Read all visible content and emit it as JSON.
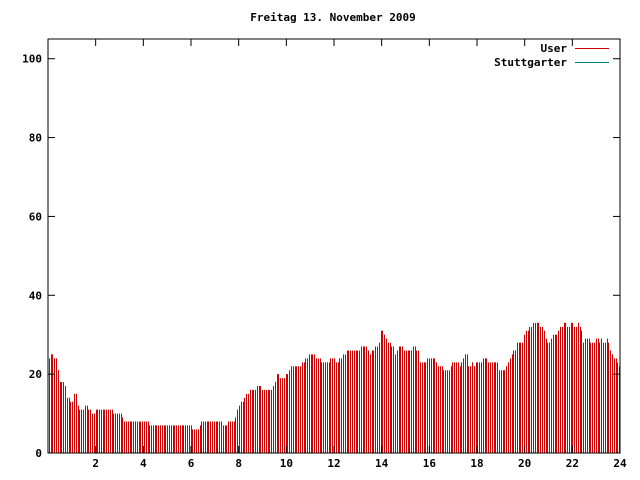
{
  "chart_data": {
    "type": "bar",
    "title": "Freitag 13. November 2009",
    "xlabel": "",
    "ylabel": "",
    "xlim": [
      0,
      24
    ],
    "ylim": [
      0,
      105
    ],
    "grid": false,
    "legend_position": "top-right",
    "x_ticks": [
      2,
      4,
      6,
      8,
      10,
      12,
      14,
      16,
      18,
      20,
      22,
      24
    ],
    "y_ticks": [
      0,
      20,
      40,
      60,
      80,
      100
    ],
    "series": [
      {
        "name": "User",
        "color": "#cc0000",
        "values": [
          24,
          25,
          25,
          24,
          24,
          21,
          18,
          18,
          18,
          17,
          14,
          14,
          13,
          13,
          15,
          15,
          12,
          11,
          11,
          11,
          12,
          12,
          11,
          11,
          10,
          10,
          11,
          11,
          11,
          11,
          11,
          11,
          11,
          11,
          11,
          11,
          10,
          10,
          10,
          10,
          10,
          9,
          8,
          8,
          8,
          8,
          8,
          8,
          8,
          8,
          8,
          8,
          8,
          8,
          8,
          8,
          7,
          7,
          7,
          7,
          7,
          7,
          7,
          7,
          7,
          7,
          7,
          7,
          7,
          7,
          7,
          7,
          7,
          7,
          7,
          7,
          7,
          7,
          7,
          7,
          6,
          6,
          6,
          6,
          7,
          8,
          8,
          8,
          8,
          8,
          8,
          8,
          8,
          8,
          8,
          8,
          8,
          7,
          7,
          7,
          8,
          8,
          8,
          8,
          9,
          11,
          12,
          13,
          13,
          14,
          15,
          15,
          16,
          16,
          16,
          16,
          17,
          17,
          17,
          16,
          16,
          16,
          16,
          16,
          16,
          17,
          18,
          20,
          20,
          19,
          19,
          19,
          20,
          20,
          21,
          22,
          22,
          22,
          22,
          22,
          22,
          23,
          23,
          24,
          24,
          25,
          25,
          25,
          25,
          24,
          24,
          24,
          23,
          23,
          23,
          23,
          23,
          24,
          24,
          24,
          23,
          23,
          24,
          24,
          25,
          25,
          26,
          26,
          26,
          26,
          26,
          26,
          26,
          26,
          27,
          27,
          27,
          27,
          26,
          25,
          26,
          26,
          27,
          27,
          28,
          31,
          31,
          30,
          29,
          28,
          28,
          27,
          27,
          25,
          26,
          27,
          27,
          27,
          26,
          26,
          26,
          26,
          26,
          27,
          27,
          26,
          26,
          23,
          23,
          23,
          23,
          24,
          24,
          24,
          24,
          24,
          23,
          22,
          22,
          22,
          21,
          21,
          21,
          21,
          22,
          23,
          23,
          23,
          23,
          22,
          23,
          24,
          25,
          25,
          22,
          22,
          23,
          22,
          23,
          23,
          23,
          23,
          24,
          24,
          24,
          23,
          23,
          23,
          23,
          23,
          23,
          21,
          21,
          21,
          21,
          22,
          23,
          24,
          25,
          26,
          26,
          28,
          28,
          28,
          28,
          30,
          31,
          31,
          32,
          32,
          33,
          33,
          33,
          33,
          32,
          32,
          31,
          29,
          28,
          28,
          29,
          30,
          30,
          30,
          31,
          32,
          32,
          33,
          33,
          32,
          32,
          33,
          33,
          32,
          32,
          33,
          32,
          31,
          28,
          29,
          29,
          29,
          28,
          28,
          28,
          29,
          29,
          28,
          29,
          28,
          28,
          29,
          28,
          26,
          25,
          24,
          24,
          23,
          22
        ]
      },
      {
        "name": "Stuttgarter",
        "color": "#008080",
        "values": []
      }
    ]
  }
}
